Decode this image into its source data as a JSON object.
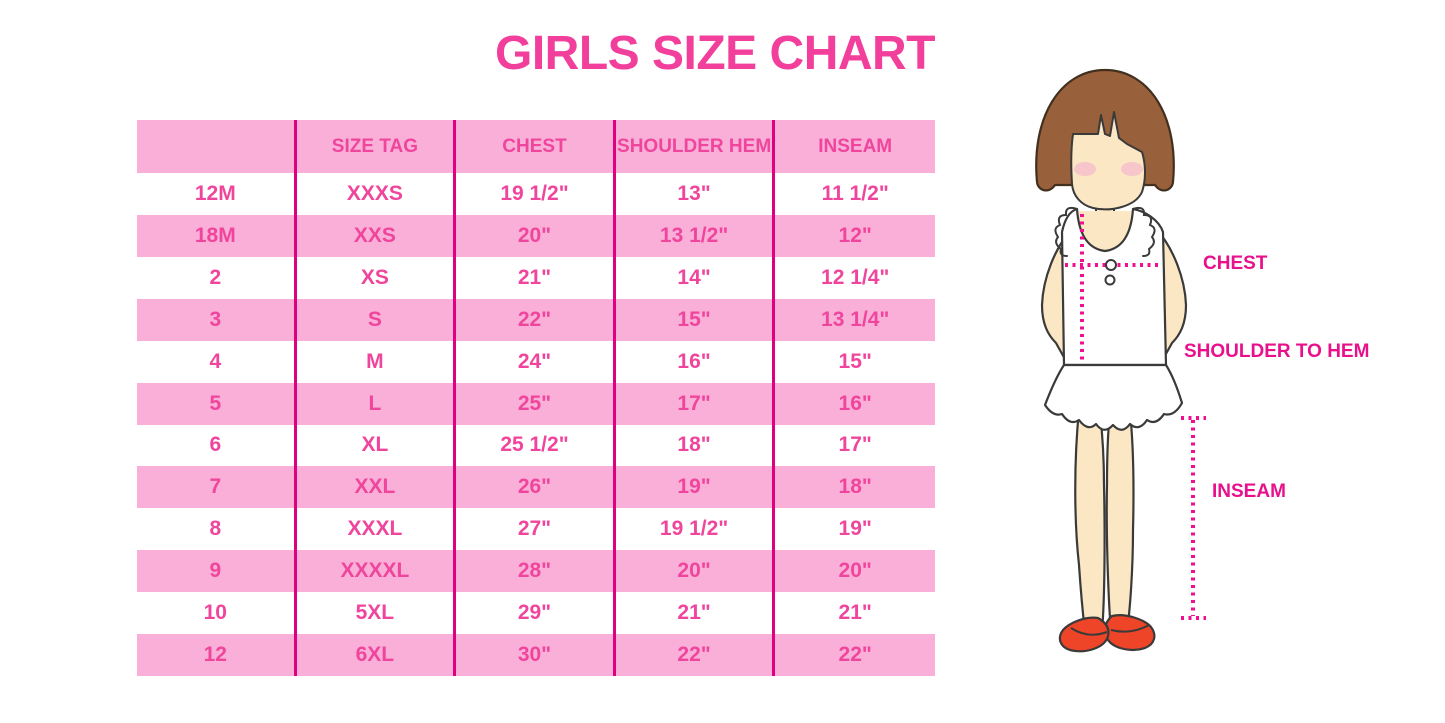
{
  "chart_data": {
    "type": "table",
    "title": "GIRLS SIZE CHART",
    "columns": [
      "",
      "SIZE TAG",
      "CHEST",
      "SHOULDER HEM",
      "INSEAM"
    ],
    "rows": [
      [
        "12M",
        "XXXS",
        "19 1/2\"",
        "13\"",
        "11 1/2\""
      ],
      [
        "18M",
        "XXS",
        "20\"",
        "13 1/2\"",
        "12\""
      ],
      [
        "2",
        "XS",
        "21\"",
        "14\"",
        "12 1/4\""
      ],
      [
        "3",
        "S",
        "22\"",
        "15\"",
        "13 1/4\""
      ],
      [
        "4",
        "M",
        "24\"",
        "16\"",
        "15\""
      ],
      [
        "5",
        "L",
        "25\"",
        "17\"",
        "16\""
      ],
      [
        "6",
        "XL",
        "25 1/2\"",
        "18\"",
        "17\""
      ],
      [
        "7",
        "XXL",
        "26\"",
        "19\"",
        "18\""
      ],
      [
        "8",
        "XXXL",
        "27\"",
        "19 1/2\"",
        "19\""
      ],
      [
        "9",
        "XXXXL",
        "28\"",
        "20\"",
        "20\""
      ],
      [
        "10",
        "5XL",
        "29\"",
        "21\"",
        "21\""
      ],
      [
        "12",
        "6XL",
        "30\"",
        "22\"",
        "22\""
      ]
    ],
    "row_stripe_pattern": "header pink, then alternating white/pink starting white",
    "legend_position": "none",
    "grid": "vertical magenta column dividers only"
  },
  "figure": {
    "labels": {
      "chest": "CHEST",
      "shoulder_to_hem": "SHOULDER TO HEM",
      "inseam": "INSEAM"
    },
    "description_icons": [
      "girl-illustration",
      "chest-measure-line",
      "shoulder-hem-measure-line",
      "inseam-measure-line"
    ]
  },
  "colors": {
    "title_pink": "#F23F9C",
    "cell_text_pink": "#F0459D",
    "row_pink": "#F9AFD8",
    "divider_magenta": "#DF0080",
    "label_magenta": "#E9108C",
    "dotted_magenta": "#EE1090",
    "hair_brown": "#99603C",
    "skin": "#FBE7C4",
    "blush_pink": "#F6BFCD",
    "shoe_red": "#EE4428",
    "outline_dark": "#3A3A3A",
    "background": "#FFFFFF"
  }
}
